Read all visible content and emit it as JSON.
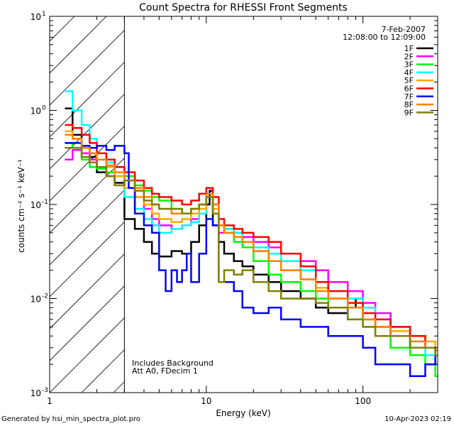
{
  "chart_data": {
    "type": "line",
    "title": "Count Spectra for RHESSI Front Segments",
    "xlabel": "Energy (keV)",
    "ylabel": "counts cm⁻² s⁻¹ keV⁻¹",
    "xscale": "log",
    "yscale": "log",
    "xlim": [
      1,
      300
    ],
    "ylim": [
      0.001,
      10
    ],
    "x_ticks": [
      {
        "value": 1,
        "label": "1"
      },
      {
        "value": 10,
        "label": "10"
      },
      {
        "value": 100,
        "label": "100"
      }
    ],
    "y_ticks": [
      {
        "value": 10,
        "base": "10",
        "exp": "1"
      },
      {
        "value": 1,
        "base": "10",
        "exp": "0"
      },
      {
        "value": 0.1,
        "base": "10",
        "exp": "-1"
      },
      {
        "value": 0.01,
        "base": "10",
        "exp": "-2"
      },
      {
        "value": 0.001,
        "base": "10",
        "exp": "-3"
      }
    ],
    "date": "7-Feb-2007",
    "time_range": "12:08:00 to 12:09:00",
    "notes": [
      "Includes Background",
      "Att A0, FDecim 1"
    ],
    "attenuator_cutoff_kev": 3,
    "series": [
      {
        "name": "1F",
        "color": "#000000",
        "x": [
          1.25,
          1.4,
          1.6,
          1.8,
          2.0,
          2.3,
          2.6,
          3.0,
          3.5,
          4.0,
          4.5,
          5.0,
          5.5,
          6.0,
          7.0,
          8.0,
          9.0,
          10.0,
          10.5,
          11.0,
          12.0,
          13.0,
          15.0,
          17.0,
          20.0,
          25.0,
          30.0,
          40.0,
          50.0,
          60.0,
          80.0,
          90.0,
          100.0,
          120.0,
          150.0,
          200.0,
          250.0,
          290.0
        ],
        "values": [
          1.05,
          0.55,
          0.4,
          0.32,
          0.22,
          0.2,
          0.17,
          0.07,
          0.055,
          0.04,
          0.03,
          0.028,
          0.028,
          0.032,
          0.03,
          0.04,
          0.06,
          0.1,
          0.14,
          0.06,
          0.04,
          0.03,
          0.025,
          0.022,
          0.018,
          0.015,
          0.012,
          0.01,
          0.008,
          0.007,
          0.008,
          0.01,
          0.006,
          0.005,
          0.004,
          0.003,
          0.003,
          0.0028
        ]
      },
      {
        "name": "2F",
        "color": "#ff00ff",
        "x": [
          1.25,
          1.4,
          1.6,
          1.8,
          2.0,
          2.3,
          2.6,
          3.0,
          3.5,
          4.0,
          4.5,
          5.0,
          6.0,
          7.0,
          8.0,
          9.0,
          10.0,
          11.0,
          12.0,
          13.0,
          15.0,
          17.0,
          20.0,
          25.0,
          30.0,
          40.0,
          50.0,
          60.0,
          80.0,
          100.0,
          120.0,
          150.0,
          200.0,
          250.0,
          290.0
        ],
        "values": [
          0.3,
          0.38,
          0.35,
          0.3,
          0.25,
          0.22,
          0.2,
          0.18,
          0.12,
          0.09,
          0.07,
          0.06,
          0.055,
          0.06,
          0.07,
          0.08,
          0.12,
          0.1,
          0.05,
          0.055,
          0.05,
          0.045,
          0.04,
          0.035,
          0.03,
          0.025,
          0.02,
          0.015,
          0.012,
          0.009,
          0.007,
          0.005,
          0.004,
          0.003,
          0.002
        ]
      },
      {
        "name": "3F",
        "color": "#00ff00",
        "x": [
          1.25,
          1.4,
          1.6,
          1.8,
          2.0,
          2.3,
          2.6,
          3.0,
          3.5,
          4.0,
          4.5,
          5.0,
          6.0,
          7.0,
          8.0,
          9.0,
          10.0,
          11.0,
          12.0,
          13.0,
          15.0,
          17.0,
          20.0,
          25.0,
          30.0,
          40.0,
          50.0,
          60.0,
          80.0,
          100.0,
          120.0,
          150.0,
          200.0,
          250.0,
          290.0
        ],
        "values": [
          0.45,
          0.4,
          0.3,
          0.25,
          0.24,
          0.22,
          0.2,
          0.2,
          0.16,
          0.14,
          0.12,
          0.11,
          0.09,
          0.08,
          0.09,
          0.1,
          0.15,
          0.1,
          0.06,
          0.05,
          0.04,
          0.035,
          0.025,
          0.018,
          0.015,
          0.012,
          0.01,
          0.008,
          0.006,
          0.005,
          0.004,
          0.003,
          0.0025,
          0.002,
          0.0015
        ]
      },
      {
        "name": "4F",
        "color": "#00ffff",
        "x": [
          1.25,
          1.4,
          1.6,
          1.8,
          2.0,
          2.3,
          2.6,
          3.0,
          3.5,
          4.0,
          4.5,
          5.0,
          6.0,
          7.0,
          8.0,
          9.0,
          10.0,
          11.0,
          12.0,
          13.0,
          15.0,
          17.0,
          20.0,
          25.0,
          30.0,
          40.0,
          50.0,
          60.0,
          80.0,
          100.0,
          120.0,
          150.0,
          200.0,
          250.0,
          290.0
        ],
        "values": [
          1.6,
          1.0,
          0.7,
          0.5,
          0.35,
          0.28,
          0.2,
          0.12,
          0.09,
          0.07,
          0.06,
          0.05,
          0.055,
          0.06,
          0.065,
          0.08,
          0.13,
          0.1,
          0.06,
          0.055,
          0.05,
          0.04,
          0.035,
          0.03,
          0.025,
          0.02,
          0.015,
          0.012,
          0.01,
          0.008,
          0.006,
          0.005,
          0.0035,
          0.0025,
          0.002
        ]
      },
      {
        "name": "5F",
        "color": "#ffaa00",
        "x": [
          1.25,
          1.4,
          1.6,
          1.8,
          2.0,
          2.3,
          2.6,
          3.0,
          3.5,
          4.0,
          4.5,
          5.0,
          6.0,
          7.0,
          8.0,
          9.0,
          10.0,
          11.0,
          12.0,
          13.0,
          15.0,
          17.0,
          20.0,
          25.0,
          30.0,
          40.0,
          50.0,
          60.0,
          80.0,
          100.0,
          120.0,
          150.0,
          200.0,
          250.0,
          290.0
        ],
        "values": [
          0.6,
          0.5,
          0.4,
          0.35,
          0.3,
          0.25,
          0.2,
          0.15,
          0.12,
          0.1,
          0.08,
          0.07,
          0.065,
          0.07,
          0.08,
          0.09,
          0.12,
          0.09,
          0.06,
          0.05,
          0.045,
          0.04,
          0.032,
          0.025,
          0.02,
          0.016,
          0.013,
          0.01,
          0.008,
          0.006,
          0.005,
          0.0045,
          0.004,
          0.0035,
          0.0025
        ]
      },
      {
        "name": "6F",
        "color": "#ff0000",
        "x": [
          1.25,
          1.4,
          1.6,
          1.8,
          2.0,
          2.3,
          2.6,
          3.0,
          3.5,
          4.0,
          4.5,
          5.0,
          6.0,
          7.0,
          8.0,
          9.0,
          10.0,
          11.0,
          12.0,
          13.0,
          15.0,
          17.0,
          20.0,
          25.0,
          30.0,
          40.0,
          50.0,
          60.0,
          80.0,
          100.0,
          120.0,
          150.0,
          200.0,
          250.0,
          290.0
        ],
        "values": [
          0.7,
          0.65,
          0.55,
          0.45,
          0.35,
          0.3,
          0.25,
          0.22,
          0.18,
          0.15,
          0.13,
          0.12,
          0.11,
          0.1,
          0.11,
          0.13,
          0.15,
          0.12,
          0.07,
          0.06,
          0.055,
          0.05,
          0.045,
          0.04,
          0.03,
          0.022,
          0.015,
          0.012,
          0.009,
          0.007,
          0.006,
          0.005,
          0.004,
          0.003,
          0.0025
        ]
      },
      {
        "name": "7F",
        "color": "#0000ff",
        "x": [
          1.25,
          1.4,
          1.6,
          1.8,
          2.0,
          2.3,
          2.6,
          3.0,
          3.2,
          3.5,
          4.0,
          4.5,
          5.0,
          5.5,
          6.0,
          6.5,
          7.0,
          7.5,
          8.0,
          9.0,
          10.0,
          11.0,
          12.0,
          15.0,
          17.0,
          20.0,
          25.0,
          30.0,
          40.0,
          50.0,
          60.0,
          80.0,
          100.0,
          120.0,
          150.0,
          200.0,
          250.0,
          290.0
        ],
        "values": [
          0.45,
          0.45,
          0.42,
          0.4,
          0.42,
          0.38,
          0.42,
          0.35,
          0.15,
          0.08,
          0.06,
          0.05,
          0.02,
          0.012,
          0.02,
          0.015,
          0.02,
          0.03,
          0.015,
          0.03,
          0.07,
          0.06,
          0.015,
          0.012,
          0.008,
          0.007,
          0.008,
          0.006,
          0.005,
          0.005,
          0.004,
          0.004,
          0.003,
          0.002,
          0.002,
          0.0015,
          0.002,
          0.0025
        ]
      },
      {
        "name": "8F",
        "color": "#ff8000",
        "x": [
          1.25,
          1.4,
          1.6,
          1.8,
          2.0,
          2.3,
          2.6,
          3.0,
          3.5,
          4.0,
          4.5,
          5.0,
          6.0,
          7.0,
          8.0,
          9.0,
          10.0,
          11.0,
          12.0,
          13.0,
          15.0,
          17.0,
          20.0,
          25.0,
          30.0,
          40.0,
          50.0,
          60.0,
          80.0,
          100.0,
          120.0,
          150.0,
          200.0,
          250.0,
          290.0
        ],
        "values": [
          0.55,
          0.5,
          0.4,
          0.35,
          0.3,
          0.26,
          0.22,
          0.18,
          0.15,
          0.12,
          0.1,
          0.09,
          0.08,
          0.08,
          0.09,
          0.1,
          0.13,
          0.1,
          0.06,
          0.05,
          0.045,
          0.04,
          0.032,
          0.025,
          0.02,
          0.016,
          0.012,
          0.01,
          0.008,
          0.006,
          0.005,
          0.004,
          0.0035,
          0.003,
          0.0028
        ]
      },
      {
        "name": "9F",
        "color": "#808000",
        "x": [
          1.25,
          1.4,
          1.6,
          1.8,
          2.0,
          2.3,
          2.6,
          3.0,
          3.5,
          4.0,
          4.5,
          5.0,
          6.0,
          7.0,
          8.0,
          9.0,
          10.0,
          11.0,
          12.0,
          13.0,
          15.0,
          17.0,
          20.0,
          25.0,
          30.0,
          40.0,
          50.0,
          60.0,
          80.0,
          100.0,
          120.0,
          150.0,
          200.0,
          250.0,
          290.0
        ],
        "values": [
          0.4,
          0.4,
          0.32,
          0.28,
          0.25,
          0.2,
          0.16,
          0.18,
          0.14,
          0.11,
          0.1,
          0.09,
          0.09,
          0.08,
          0.09,
          0.1,
          0.12,
          0.08,
          0.015,
          0.02,
          0.018,
          0.02,
          0.015,
          0.012,
          0.01,
          0.01,
          0.009,
          0.008,
          0.006,
          0.005,
          0.004,
          0.004,
          0.003,
          0.003,
          0.0025
        ]
      }
    ]
  },
  "footer": {
    "left": "Generated by hsi_min_spectra_plot.pro",
    "right": "10-Apr-2023 02:19"
  }
}
